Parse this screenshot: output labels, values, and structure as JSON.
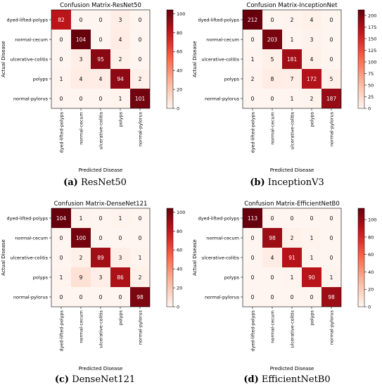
{
  "chart_data": [
    {
      "type": "heatmap",
      "title": "Confusion Matrix-ResNet50",
      "xlabel": "Predicted Disease",
      "ylabel": "Actual Disease",
      "categories": [
        "dyed-lifted-polyps",
        "normal-cecum",
        "ulcerative-colitis",
        "polyps",
        "normal-pylorus"
      ],
      "matrix": [
        [
          82,
          0,
          0,
          3,
          0
        ],
        [
          0,
          104,
          0,
          4,
          0
        ],
        [
          0,
          3,
          95,
          2,
          0
        ],
        [
          1,
          4,
          4,
          94,
          2
        ],
        [
          0,
          0,
          0,
          1,
          101
        ]
      ],
      "colorbar_ticks": [
        0,
        20,
        40,
        60,
        80,
        100
      ],
      "colorbar_range": [
        0,
        104
      ],
      "caption_tag": "(a)",
      "caption_text": "ResNet50"
    },
    {
      "type": "heatmap",
      "title": "Confusion Matrix-InceptionNet",
      "xlabel": "Predicted Disease",
      "ylabel": "Actual Disease",
      "categories": [
        "dyed-lifted-polyps",
        "normal-cecum",
        "ulcerative-colitis",
        "polyps",
        "normal-pylorus"
      ],
      "matrix": [
        [
          212,
          0,
          2,
          4,
          0
        ],
        [
          0,
          203,
          1,
          3,
          0
        ],
        [
          1,
          5,
          181,
          4,
          0
        ],
        [
          2,
          8,
          7,
          172,
          5
        ],
        [
          0,
          0,
          1,
          2,
          187
        ]
      ],
      "colorbar_ticks": [
        0,
        25,
        50,
        75,
        100,
        125,
        150,
        175,
        200
      ],
      "colorbar_range": [
        0,
        212
      ],
      "caption_tag": "(b)",
      "caption_text": "InceptionV3"
    },
    {
      "type": "heatmap",
      "title": "Confusion Matrix-DenseNet121",
      "xlabel": "Predicted Disease",
      "ylabel": "Actual Disease",
      "categories": [
        "dyed-lifted-polyps",
        "normal-cecum",
        "ulcerative-colitis",
        "polyps",
        "normal-pylorus"
      ],
      "matrix": [
        [
          104,
          1,
          0,
          1,
          0
        ],
        [
          0,
          100,
          0,
          0,
          0
        ],
        [
          0,
          2,
          89,
          3,
          1
        ],
        [
          1,
          9,
          3,
          86,
          2
        ],
        [
          0,
          0,
          0,
          0,
          98
        ]
      ],
      "colorbar_ticks": [
        0,
        20,
        40,
        60,
        80,
        100
      ],
      "colorbar_range": [
        0,
        104
      ],
      "caption_tag": "(c)",
      "caption_text": "DenseNet121"
    },
    {
      "type": "heatmap",
      "title": "Confusion Matrix-EfficientNetB0",
      "xlabel": "Predicted Disease",
      "ylabel": "Actual Disease",
      "categories": [
        "dyed-lifted-polyps",
        "normal-cecum",
        "ulcerative-colitis",
        "polyps",
        "normal-pylorus"
      ],
      "matrix": [
        [
          113,
          0,
          0,
          0,
          0
        ],
        [
          0,
          98,
          2,
          1,
          0
        ],
        [
          0,
          4,
          91,
          1,
          0
        ],
        [
          0,
          0,
          1,
          90,
          1
        ],
        [
          0,
          0,
          0,
          0,
          98
        ]
      ],
      "colorbar_ticks": [
        0,
        20,
        40,
        60,
        80,
        100
      ],
      "colorbar_range": [
        0,
        113
      ],
      "caption_tag": "(d)",
      "caption_text": "EfficientNetB0"
    }
  ],
  "colormap": [
    "#fff5f0",
    "#fcbba1",
    "#fb6a4a",
    "#cb181d",
    "#67000d"
  ]
}
